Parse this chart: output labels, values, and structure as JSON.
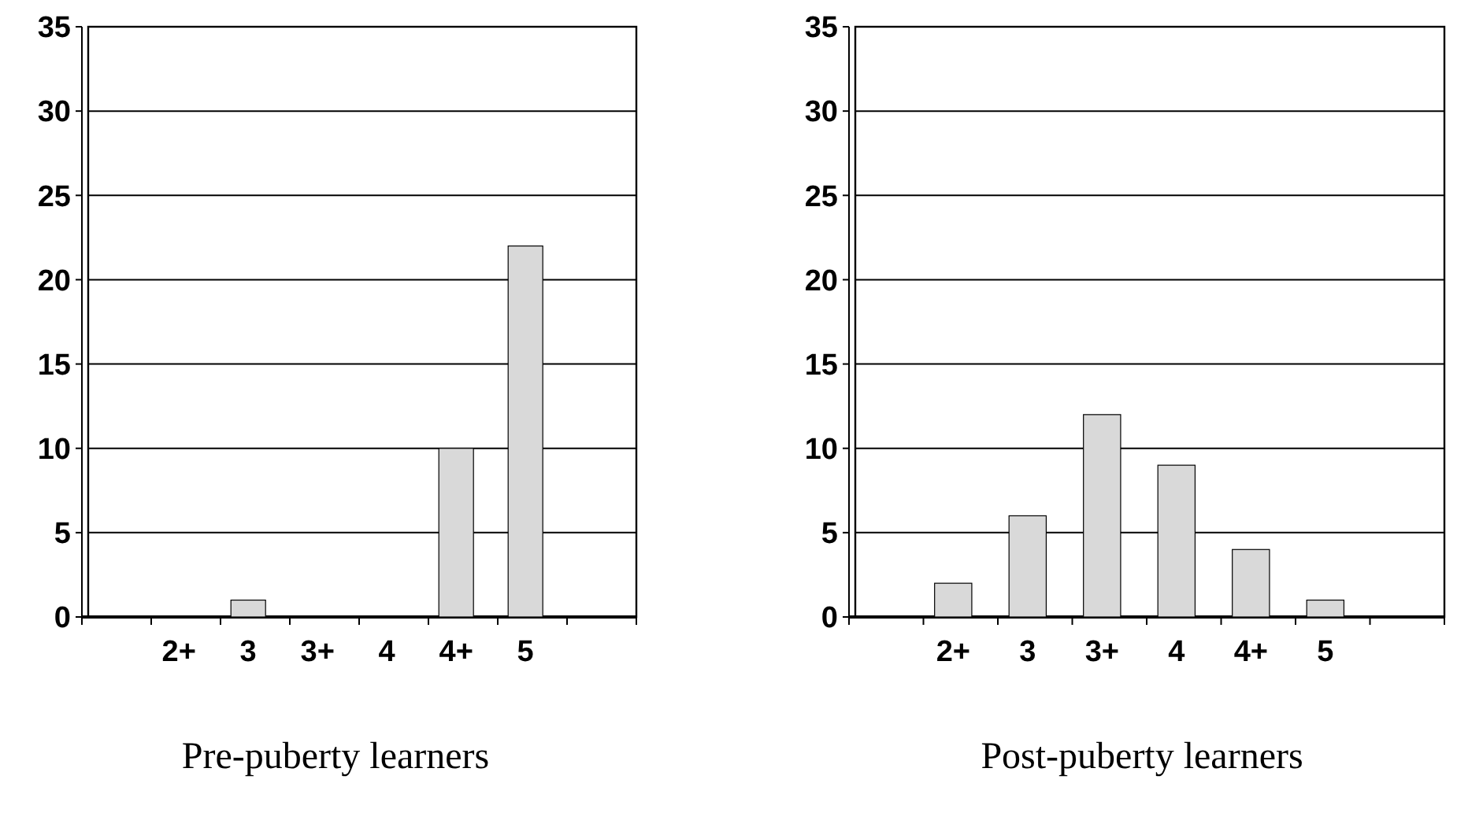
{
  "chart_data": [
    {
      "type": "bar",
      "xlabel": "Pre-puberty learners",
      "categories": [
        null,
        "2+",
        "3",
        "3+",
        "4",
        "4+",
        "5",
        null
      ],
      "values": [
        null,
        0,
        1,
        0,
        0,
        10,
        22,
        null
      ],
      "color": "#d9d9d9",
      "ylim": [
        0,
        35
      ],
      "yticks": [
        0,
        5,
        10,
        15,
        20,
        25,
        30,
        35
      ],
      "grid": "y"
    },
    {
      "type": "bar",
      "xlabel": "Post-puberty learners",
      "categories": [
        null,
        "2+",
        "3",
        "3+",
        "4",
        "4+",
        "5",
        null
      ],
      "values": [
        null,
        2,
        6,
        12,
        9,
        4,
        1,
        null
      ],
      "color": "#d9d9d9",
      "ylim": [
        0,
        35
      ],
      "yticks": [
        0,
        5,
        10,
        15,
        20,
        25,
        30,
        35
      ],
      "grid": "y"
    }
  ]
}
